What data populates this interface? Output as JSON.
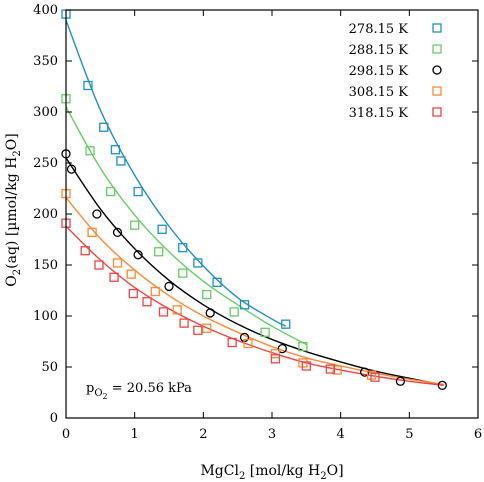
{
  "chart_data": {
    "type": "scatter",
    "xlabel": "MgCl",
    "xlabel_sub": "2",
    "xlabel_suffix": " [mol/kg H",
    "xlabel_sub2": "2",
    "xlabel_end": "O]",
    "ylabel": "O",
    "ylabel_sub": "2",
    "ylabel_mid": "(aq) [µmol/kg H",
    "ylabel_sub2": "2",
    "ylabel_end": "O]",
    "xlim": [
      0,
      6
    ],
    "ylim": [
      0,
      400
    ],
    "xticks": [
      0,
      1,
      2,
      3,
      4,
      5,
      6
    ],
    "yticks": [
      0,
      50,
      100,
      150,
      200,
      250,
      300,
      350,
      400
    ],
    "xtick_labels": [
      "0",
      "1",
      "2",
      "3",
      "4",
      "5",
      "6"
    ],
    "ytick_labels": [
      "0",
      "50",
      "100",
      "150",
      "200",
      "250",
      "300",
      "350",
      "400"
    ],
    "legend_position": "top-right",
    "grid": false,
    "annotation": {
      "prefix": "p",
      "sub_main": "O",
      "sub_sub": "2",
      "suffix": " = 20.56 kPa"
    },
    "series": [
      {
        "name": "278.15 K",
        "marker": "square",
        "color": "#1f8fc4",
        "x": [
          0.0,
          0.32,
          0.55,
          0.72,
          0.8,
          1.05,
          1.4,
          1.7,
          1.92,
          2.2,
          2.6,
          3.2
        ],
        "y": [
          396,
          326,
          285,
          263,
          252,
          222,
          185,
          167,
          152,
          133,
          111,
          92
        ],
        "fit": [
          [
            0.0,
            390
          ],
          [
            0.5,
            302
          ],
          [
            1.0,
            238
          ],
          [
            1.5,
            188
          ],
          [
            2.0,
            149
          ],
          [
            2.5,
            118
          ],
          [
            3.0,
            97
          ],
          [
            3.2,
            90
          ]
        ]
      },
      {
        "name": "288.15 K",
        "marker": "square",
        "color": "#66cc66",
        "x": [
          0.0,
          0.35,
          0.65,
          1.0,
          1.35,
          1.7,
          2.05,
          2.45,
          2.9,
          3.45
        ],
        "y": [
          313,
          262,
          222,
          189,
          163,
          142,
          121,
          104,
          84,
          70
        ],
        "fit": [
          [
            0.0,
            305
          ],
          [
            0.5,
            245
          ],
          [
            1.0,
            199
          ],
          [
            1.5,
            163
          ],
          [
            2.0,
            134
          ],
          [
            2.5,
            111
          ],
          [
            3.0,
            90
          ],
          [
            3.5,
            72
          ]
        ]
      },
      {
        "name": "298.15 K",
        "marker": "circle",
        "color": "#000000",
        "x": [
          0.0,
          0.08,
          0.45,
          0.75,
          1.05,
          1.5,
          2.1,
          2.6,
          3.15,
          4.35,
          4.87,
          5.48
        ],
        "y": [
          259,
          244,
          200,
          182,
          160,
          129,
          103,
          79,
          68,
          45,
          36,
          32
        ],
        "fit": [
          [
            0.0,
            255
          ],
          [
            0.5,
            205
          ],
          [
            1.0,
            166
          ],
          [
            1.5,
            135
          ],
          [
            2.0,
            111
          ],
          [
            2.5,
            92
          ],
          [
            3.0,
            77
          ],
          [
            3.5,
            65
          ],
          [
            4.0,
            55
          ],
          [
            4.5,
            46
          ],
          [
            5.0,
            39
          ],
          [
            5.5,
            32
          ]
        ]
      },
      {
        "name": "308.15 K",
        "marker": "square",
        "color": "#ff8833",
        "x": [
          0.0,
          0.38,
          0.75,
          0.95,
          1.3,
          1.62,
          2.05,
          2.65,
          3.05,
          3.45,
          3.95,
          4.45
        ],
        "y": [
          220,
          182,
          152,
          141,
          124,
          106,
          88,
          73,
          63,
          54,
          47,
          42
        ],
        "fit": [
          [
            0.0,
            216
          ],
          [
            0.5,
            176
          ],
          [
            1.0,
            145
          ],
          [
            1.5,
            120
          ],
          [
            2.0,
            100
          ],
          [
            2.5,
            84
          ],
          [
            3.0,
            70
          ],
          [
            3.5,
            59
          ],
          [
            4.0,
            51
          ],
          [
            4.5,
            44
          ],
          [
            5.0,
            38
          ],
          [
            5.5,
            33
          ]
        ]
      },
      {
        "name": "318.15 K",
        "marker": "square",
        "color": "#ee4444",
        "x": [
          0.0,
          0.28,
          0.48,
          0.7,
          0.98,
          1.18,
          1.42,
          1.72,
          1.92,
          2.42,
          3.05,
          3.5,
          3.85,
          4.5
        ],
        "y": [
          191,
          164,
          150,
          138,
          122,
          114,
          104,
          93,
          86,
          74,
          58,
          51,
          48,
          40
        ],
        "fit": [
          [
            0.0,
            188
          ],
          [
            0.5,
            155
          ],
          [
            1.0,
            128
          ],
          [
            1.5,
            107
          ],
          [
            2.0,
            90
          ],
          [
            2.5,
            76
          ],
          [
            3.0,
            64
          ],
          [
            3.5,
            54
          ],
          [
            4.0,
            47
          ],
          [
            4.5,
            41
          ],
          [
            5.0,
            36
          ],
          [
            5.5,
            32
          ]
        ]
      }
    ]
  }
}
